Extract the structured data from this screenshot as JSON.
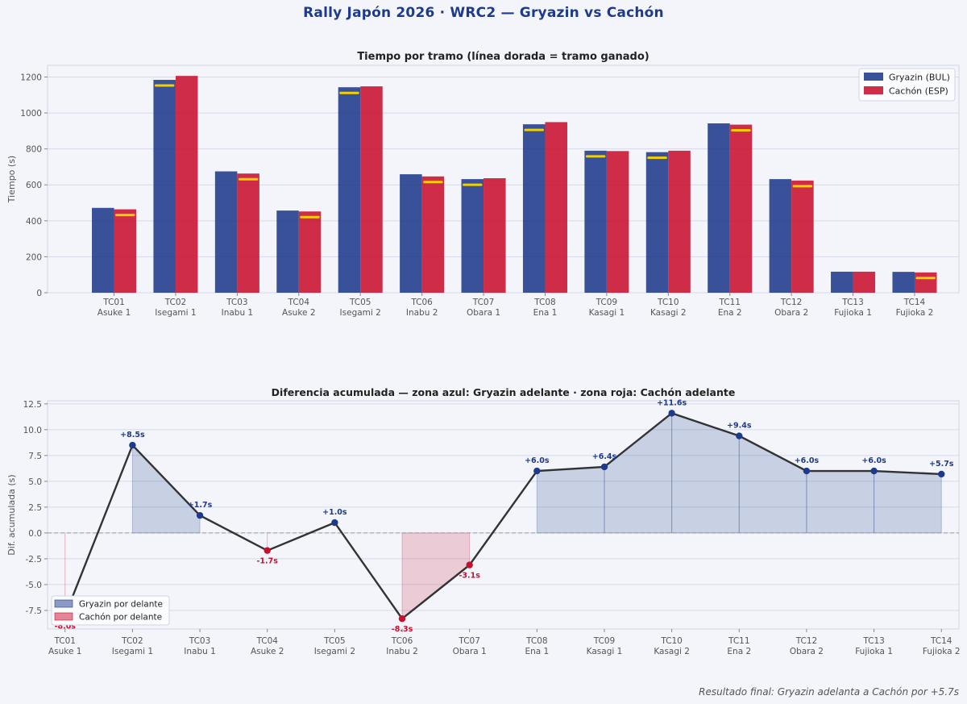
{
  "title": "Rally Japón 2026  ·  WRC2  —  Gryazin vs Cachón",
  "footnote": "Resultado final: Gryazin adelanta a Cachón por +5.7s",
  "colors": {
    "gryazin": "#1e3a8a",
    "cachon": "#c8102e",
    "gold": "#f5d000",
    "line": "#333333",
    "grid": "#d4d9ea"
  },
  "chart_data": [
    {
      "type": "bar",
      "title": "Tiempo por tramo  (línea dorada = tramo ganado)",
      "ylabel": "Tiempo (s)",
      "ylim": [
        0,
        1265
      ],
      "yticks": [
        0,
        200,
        400,
        600,
        800,
        1000,
        1200
      ],
      "grid": true,
      "legend_position": "top-right",
      "categories": [
        "TC01\nAsuke 1",
        "TC02\nIsegami 1",
        "TC03\nInabu 1",
        "TC04\nAsuke 2",
        "TC05\nIsegami 2",
        "TC06\nInabu 2",
        "TC07\nObara 1",
        "TC08\nEna 1",
        "TC09\nKasagi 1",
        "TC10\nKasagi 2",
        "TC11\nEna 2",
        "TC12\nObara 2",
        "TC13\nFujioka 1",
        "TC14\nFujioka 2"
      ],
      "series": [
        {
          "name": "Gryazin (BUL)",
          "values": [
            472,
            1184,
            675,
            457,
            1143,
            659,
            632,
            937,
            790,
            782,
            942,
            632,
            117,
            116
          ]
        },
        {
          "name": "Cachón (ESP)",
          "values": [
            464,
            1206,
            663,
            452,
            1148,
            647,
            637,
            949,
            788,
            790,
            935,
            624,
            117,
            113
          ]
        }
      ],
      "stage_winner": [
        "Cachón",
        "Gryazin",
        "Cachón",
        "Cachón",
        "Gryazin",
        "Cachón",
        "Gryazin",
        "Gryazin",
        "Gryazin",
        "Gryazin",
        "Cachón",
        "Cachón",
        "",
        "Cachón"
      ]
    },
    {
      "type": "line",
      "title": "Diferencia acumulada  —  zona azul: Gryazin adelante · zona roja: Cachón adelante",
      "ylabel": "Dif. acumulada (s)",
      "ylim": [
        -9.3,
        12.8
      ],
      "yticks": [
        -7.5,
        -5.0,
        -2.5,
        0.0,
        2.5,
        5.0,
        7.5,
        10.0,
        12.5
      ],
      "grid": true,
      "legend_position": "bottom-left",
      "legend": [
        "Gryazin por delante",
        "Cachón por delante"
      ],
      "categories": [
        "TC01\nAsuke 1",
        "TC02\nIsegami 1",
        "TC03\nInabu 1",
        "TC04\nAsuke 2",
        "TC05\nIsegami 2",
        "TC06\nInabu 2",
        "TC07\nObara 1",
        "TC08\nEna 1",
        "TC09\nKasagi 1",
        "TC10\nKasagi 2",
        "TC11\nEna 2",
        "TC12\nObara 2",
        "TC13\nFujioka 1",
        "TC14\nFujioka 2"
      ],
      "values": [
        -8.0,
        8.5,
        1.7,
        -1.7,
        1.0,
        -8.3,
        -3.1,
        6.0,
        6.4,
        11.6,
        9.4,
        6.0,
        6.0,
        5.7
      ],
      "labels": [
        "-8.0s",
        "+8.5s",
        "+1.7s",
        "-1.7s",
        "+1.0s",
        "-8.3s",
        "-3.1s",
        "+6.0s",
        "+6.4s",
        "+11.6s",
        "+9.4s",
        "+6.0s",
        "+6.0s",
        "+5.7s"
      ]
    }
  ]
}
